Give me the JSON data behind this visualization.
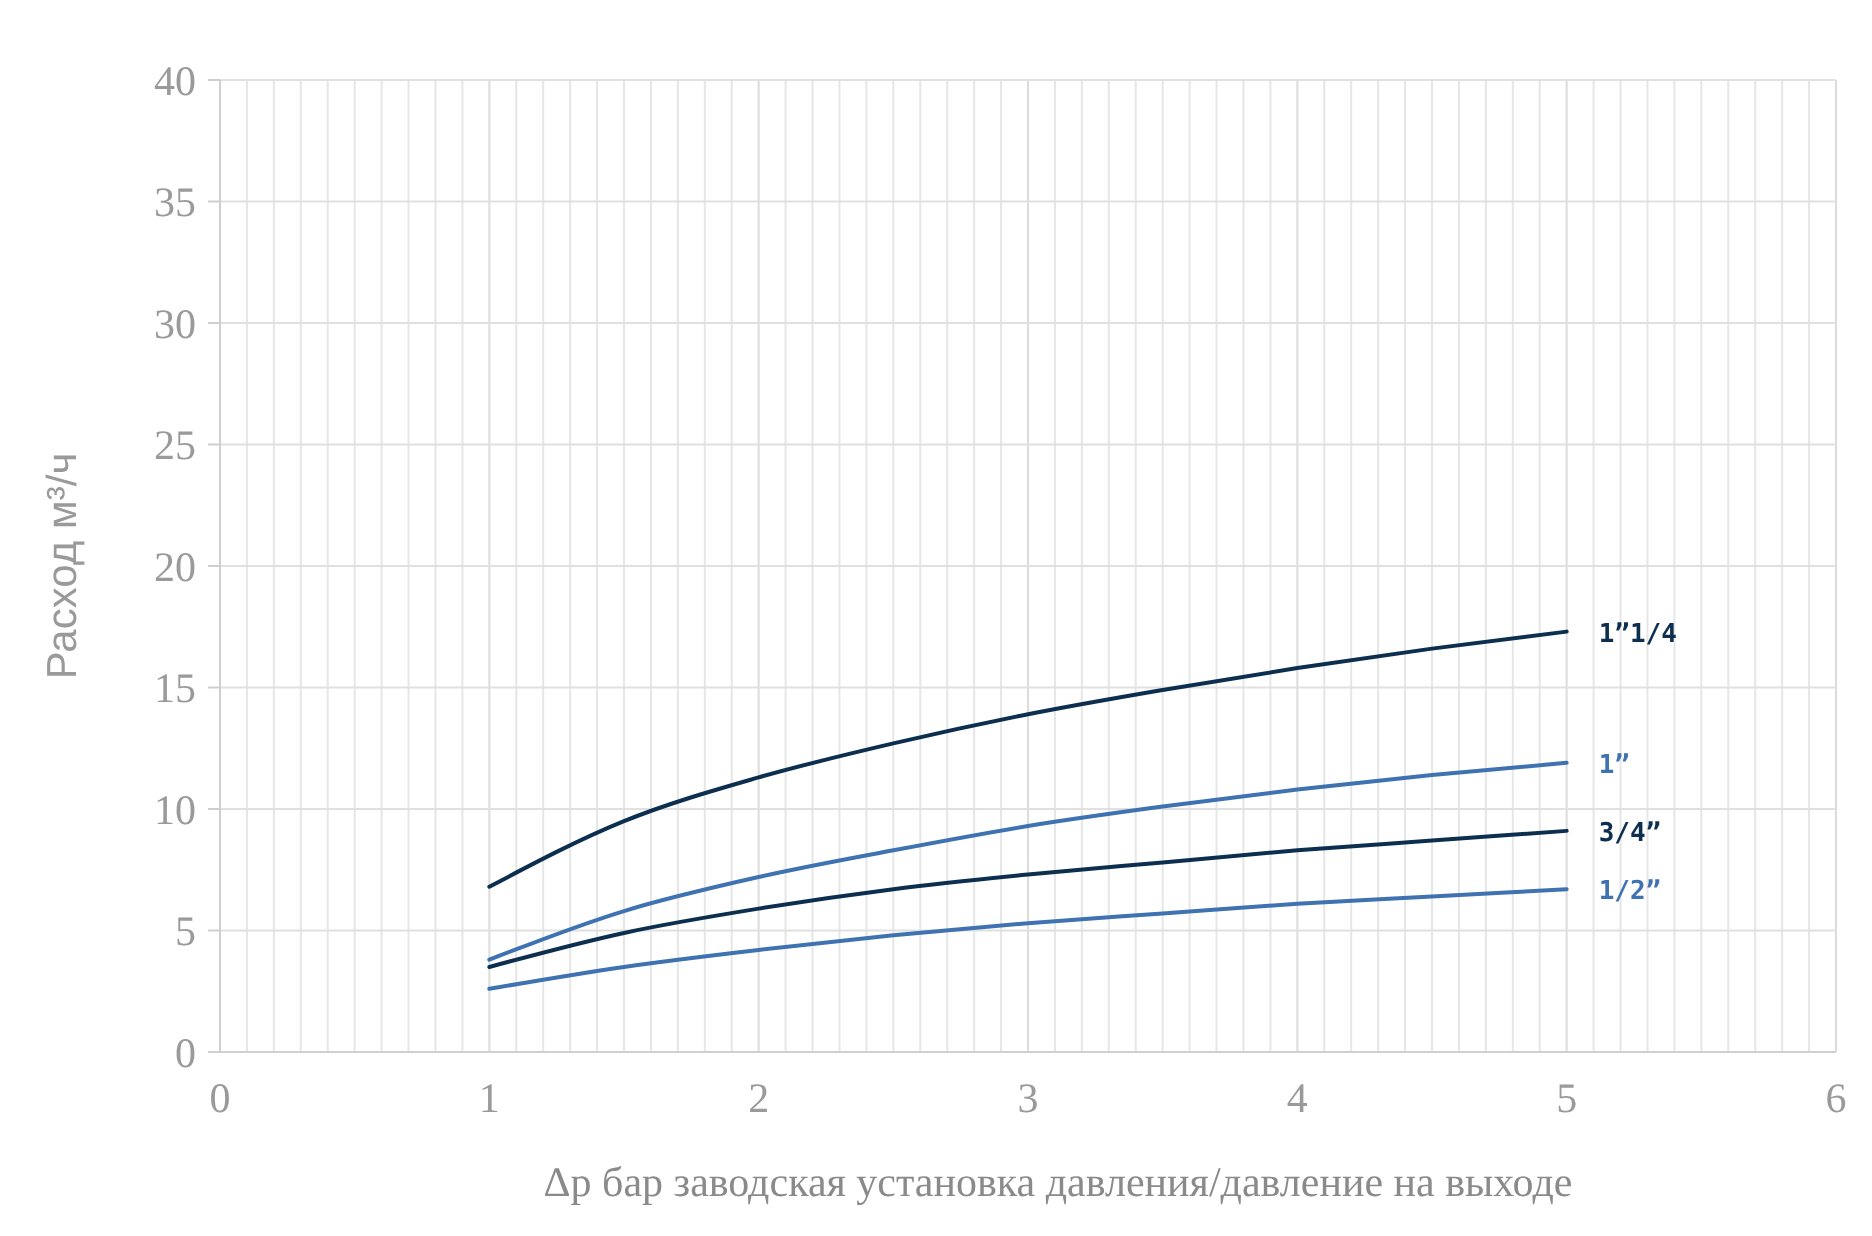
{
  "chart_data": {
    "type": "line",
    "xlabel": "Δp бар заводская установка давления/давление на выходе",
    "ylabel": "Расход м³/ч",
    "x": [
      1,
      1.5,
      2,
      2.5,
      3,
      3.5,
      4,
      4.5,
      5
    ],
    "xlim": [
      0,
      6
    ],
    "ylim": [
      0,
      40
    ],
    "xticks": [
      0,
      {
        "value": 0.1,
        "label": null
      },
      {
        "value": 0.2,
        "label": null
      },
      {
        "value": 0.3,
        "label": null
      },
      {
        "value": 0.4,
        "label": null
      },
      {
        "value": 0.5,
        "label": null
      },
      {
        "value": 0.6,
        "label": null
      },
      {
        "value": 0.7,
        "label": null
      },
      {
        "value": 0.8,
        "label": null
      },
      {
        "value": 0.9,
        "label": null
      },
      1,
      {
        "value": 1.1,
        "label": null
      },
      {
        "value": 1.2,
        "label": null
      },
      {
        "value": 1.3,
        "label": null
      },
      {
        "value": 1.4,
        "label": null
      },
      {
        "value": 1.5,
        "label": null
      },
      {
        "value": 1.6,
        "label": null
      },
      {
        "value": 1.7,
        "label": null
      },
      {
        "value": 1.8,
        "label": null
      },
      {
        "value": 1.9,
        "label": null
      },
      2,
      {
        "value": 2.1,
        "label": null
      },
      {
        "value": 2.2,
        "label": null
      },
      {
        "value": 2.3,
        "label": null
      },
      {
        "value": 2.4,
        "label": null
      },
      {
        "value": 2.5,
        "label": null
      },
      {
        "value": 2.6,
        "label": null
      },
      {
        "value": 2.7,
        "label": null
      },
      {
        "value": 2.8,
        "label": null
      },
      {
        "value": 2.9,
        "label": null
      },
      3,
      {
        "value": 3.1,
        "label": null
      },
      {
        "value": 3.2,
        "label": null
      },
      {
        "value": 3.3,
        "label": null
      },
      {
        "value": 3.4,
        "label": null
      },
      {
        "value": 3.5,
        "label": null
      },
      {
        "value": 3.6,
        "label": null
      },
      {
        "value": 3.7,
        "label": null
      },
      {
        "value": 3.8,
        "label": null
      },
      {
        "value": 3.9,
        "label": null
      },
      4,
      {
        "value": 4.1,
        "label": null
      },
      {
        "value": 4.2,
        "label": null
      },
      {
        "value": 4.3,
        "label": null
      },
      {
        "value": 4.4,
        "label": null
      },
      {
        "value": 4.5,
        "label": null
      },
      {
        "value": 4.6,
        "label": null
      },
      {
        "value": 4.7,
        "label": null
      },
      {
        "value": 4.8,
        "label": null
      },
      {
        "value": 4.9,
        "label": null
      },
      5,
      {
        "value": 5.1,
        "label": null
      },
      {
        "value": 5.2,
        "label": null
      },
      {
        "value": 5.3,
        "label": null
      },
      {
        "value": 5.4,
        "label": null
      },
      {
        "value": 5.5,
        "label": null
      },
      {
        "value": 5.6,
        "label": null
      },
      {
        "value": 5.7,
        "label": null
      },
      {
        "value": 5.8,
        "label": null
      },
      {
        "value": 5.9,
        "label": null
      },
      6
    ],
    "yticks": [
      0,
      5,
      10,
      15,
      20,
      25,
      30,
      35,
      40
    ],
    "grid": true,
    "marker": "none",
    "line_style": "solid",
    "series": [
      {
        "name": "1”1/4",
        "color": "#0d2f4f",
        "values": [
          6.8,
          9.5,
          11.3,
          12.7,
          13.9,
          14.9,
          15.8,
          16.6,
          17.3
        ]
      },
      {
        "name": "1”",
        "color": "#3e72b0",
        "values": [
          3.8,
          5.8,
          7.2,
          8.3,
          9.3,
          10.1,
          10.8,
          11.4,
          11.9
        ]
      },
      {
        "name": "3/4”",
        "color": "#0d2f4f",
        "values": [
          3.5,
          4.9,
          5.9,
          6.7,
          7.3,
          7.8,
          8.3,
          8.7,
          9.1
        ]
      },
      {
        "name": "1/2”",
        "color": "#3e72b0",
        "values": [
          2.6,
          3.5,
          4.2,
          4.8,
          5.3,
          5.7,
          6.1,
          6.4,
          6.7
        ]
      }
    ]
  }
}
